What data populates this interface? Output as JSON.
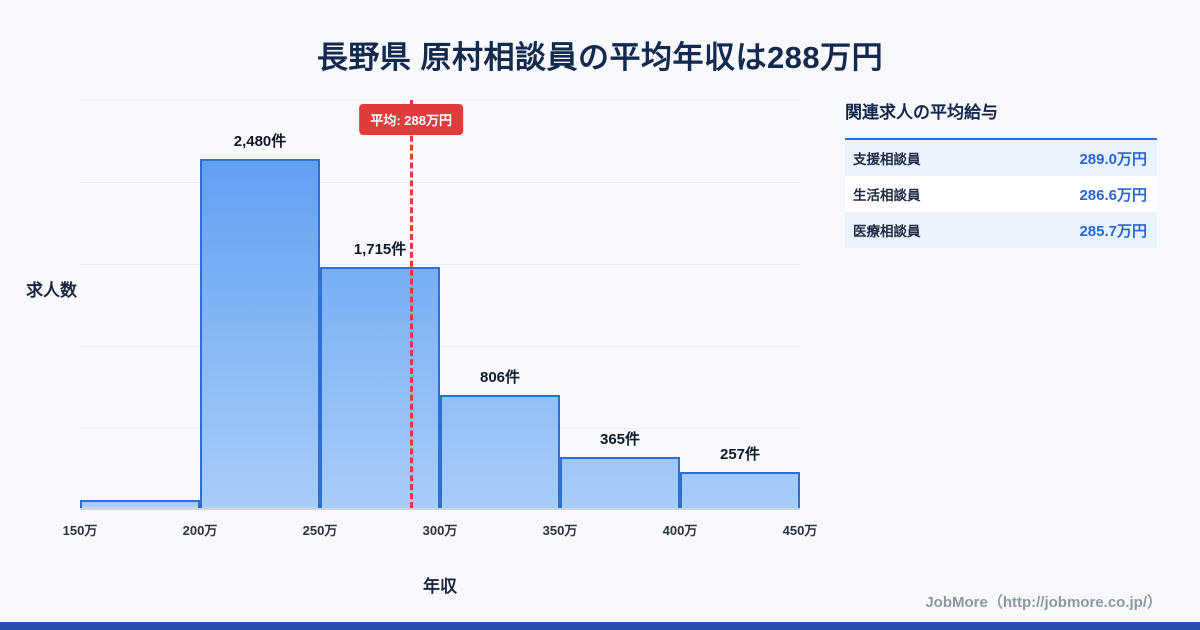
{
  "title": "長野県 原村相談員の平均年収は288万円",
  "chart_data": {
    "type": "bar",
    "subtype": "histogram",
    "title": "長野県 原村相談員の平均年収は288万円",
    "xlabel": "年収",
    "ylabel": "求人数",
    "ticks": [
      "150万",
      "200万",
      "250万",
      "300万",
      "350万",
      "400万",
      "450万"
    ],
    "bins": [
      "150万-200万",
      "200万-250万",
      "250万-300万",
      "300万-350万",
      "350万-400万",
      "400万-450万"
    ],
    "values": [
      55,
      2480,
      1715,
      806,
      365,
      257
    ],
    "bar_labels": [
      "",
      "2,480件",
      "1,715件",
      "806件",
      "365件",
      "257件"
    ],
    "ylim": [
      0,
      2900
    ],
    "x_range": [
      150,
      450
    ],
    "grid": "horizontal",
    "average": {
      "value": 288,
      "label": "平均: 288万円"
    }
  },
  "side_panel": {
    "heading": "関連求人の平均給与",
    "rows": [
      {
        "label": "支援相談員",
        "value": "289.0万円"
      },
      {
        "label": "生活相談員",
        "value": "286.6万円"
      },
      {
        "label": "医療相談員",
        "value": "285.7万円"
      }
    ]
  },
  "footer": {
    "credit": "JobMore（http://jobmore.co.jp/）"
  },
  "colors": {
    "accent_red": "#e23b3b",
    "bar_border": "#2e6fd6",
    "bar_fill_top": "#5598ef",
    "bar_fill_bottom": "#a9cdf9",
    "value_blue": "#2a64d9",
    "title_navy": "#14294e",
    "bottom_bar": "#2c4fae"
  }
}
